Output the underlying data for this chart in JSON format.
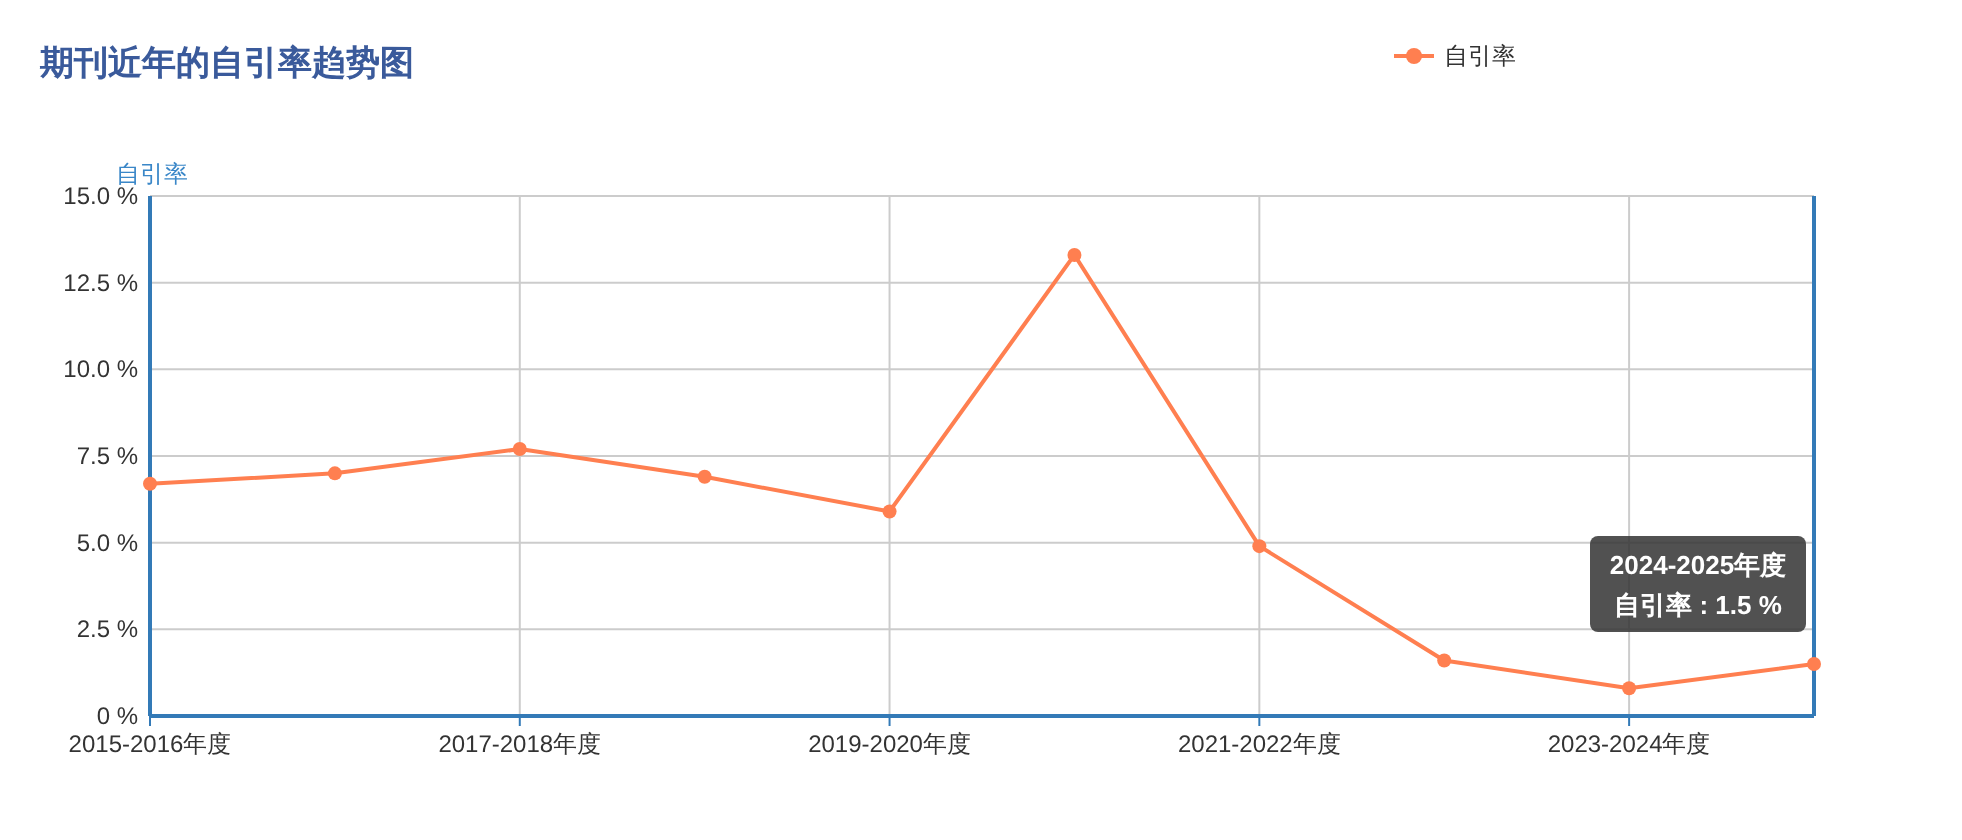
{
  "chart_data": {
    "type": "line",
    "title": "期刊近年的自引率趋势图",
    "ylabel": "自引率",
    "categories": [
      "2015-2016年度",
      null,
      "2017-2018年度",
      null,
      "2019-2020年度",
      null,
      "2021-2022年度",
      null,
      "2023-2024年度",
      null
    ],
    "series": [
      {
        "name": "自引率",
        "color": "#ff7f50",
        "values": [
          6.7,
          7.0,
          7.7,
          6.9,
          5.9,
          13.3,
          4.9,
          1.6,
          0.8,
          1.5
        ]
      }
    ],
    "ylim": [
      0,
      15
    ],
    "yticks": [
      {
        "value": 0,
        "label": "0 %"
      },
      {
        "value": 2.5,
        "label": "2.5 %"
      },
      {
        "value": 5,
        "label": "5.0 %"
      },
      {
        "value": 7.5,
        "label": "7.5 %"
      },
      {
        "value": 10,
        "label": "10.0 %"
      },
      {
        "value": 12.5,
        "label": "12.5 %"
      },
      {
        "value": 15,
        "label": "15.0 %"
      }
    ],
    "annotations": [
      "2024-2025年度",
      "自引率 : 1.5 %"
    ],
    "grid": true,
    "legend": "top",
    "marker": "circle",
    "line_style": "solid"
  }
}
